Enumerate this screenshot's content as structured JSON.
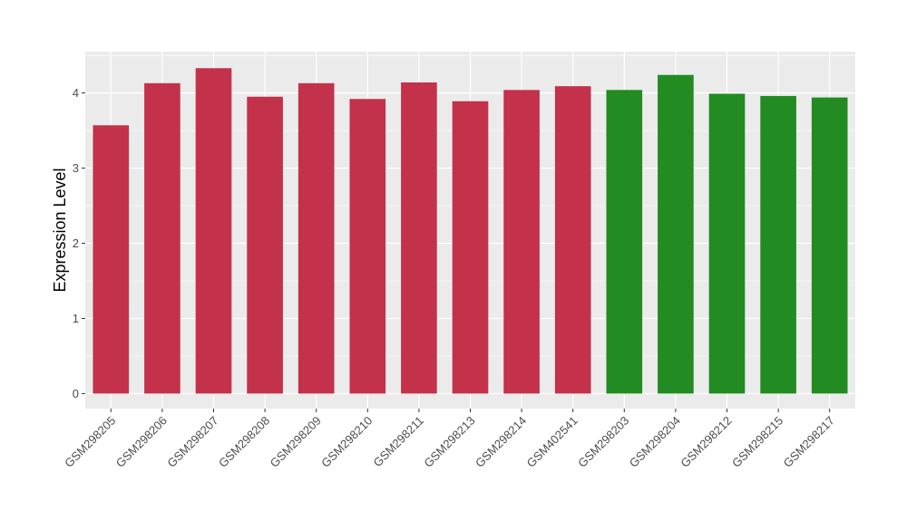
{
  "chart_data": {
    "type": "bar",
    "title": "",
    "xlabel": "",
    "ylabel": "Expression Level",
    "ylim": [
      -0.2,
      4.55
    ],
    "yticks": [
      0,
      1,
      2,
      3,
      4
    ],
    "grid": true,
    "legend": "none",
    "categories": [
      "GSM298205",
      "GSM298206",
      "GSM298207",
      "GSM298208",
      "GSM298209",
      "GSM298210",
      "GSM298211",
      "GSM298213",
      "GSM298214",
      "GSM402541",
      "GSM298203",
      "GSM298204",
      "GSM298212",
      "GSM298215",
      "GSM298217"
    ],
    "values": [
      3.57,
      4.13,
      4.33,
      3.95,
      4.13,
      3.92,
      4.14,
      3.89,
      4.04,
      4.09,
      4.04,
      4.24,
      3.99,
      3.96,
      3.94
    ],
    "bar_colors": [
      "#c3314a",
      "#c3314a",
      "#c3314a",
      "#c3314a",
      "#c3314a",
      "#c3314a",
      "#c3314a",
      "#c3314a",
      "#c3314a",
      "#c3314a",
      "#228b22",
      "#228b22",
      "#228b22",
      "#228b22",
      "#228b22"
    ],
    "panel_color": "#ebebeb",
    "grid_color": "#ffffff"
  }
}
